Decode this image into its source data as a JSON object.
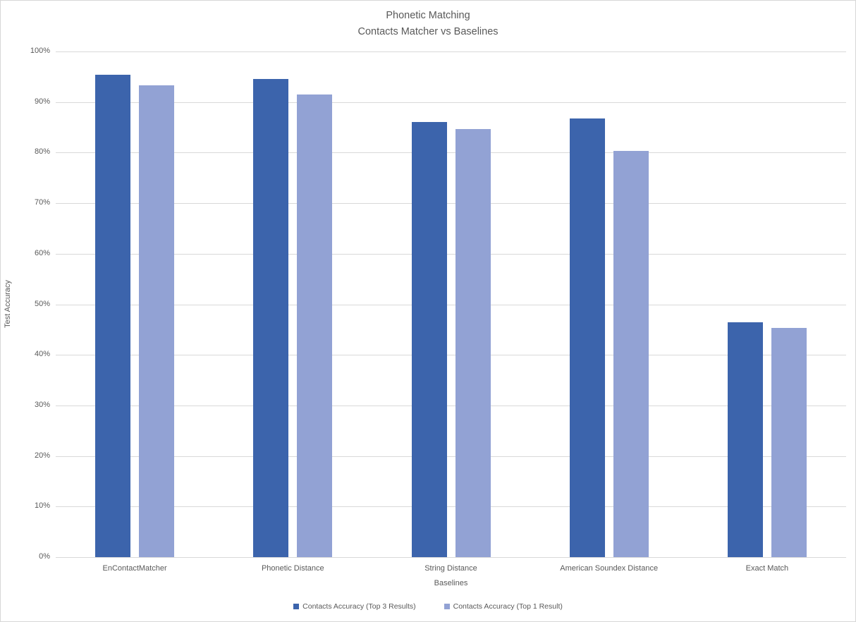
{
  "title": {
    "line1": "Phonetic Matching",
    "line2": "Contacts Matcher vs Baselines"
  },
  "chart_data": {
    "type": "bar",
    "title": "Phonetic Matching\nContacts Matcher vs Baselines",
    "categories": [
      "EnContactMatcher",
      "Phonetic Distance",
      "String Distance",
      "American Soundex Distance",
      "Exact Match"
    ],
    "series": [
      {
        "name": "Contacts Accuracy (Top 3 Results)",
        "color": "#3c64ac",
        "values": [
          95.4,
          94.6,
          86.0,
          86.7,
          46.4
        ]
      },
      {
        "name": "Contacts Accuracy (Top 1 Result)",
        "color": "#92a2d4",
        "values": [
          93.3,
          91.5,
          84.6,
          80.4,
          45.3
        ]
      }
    ],
    "xlabel": "Baselines",
    "ylabel": "Test Accuracy",
    "ylim": [
      0,
      100
    ],
    "ytick_step": 10,
    "ytick_format": "percent",
    "grid": true,
    "legend_position": "bottom"
  },
  "colors": {
    "gridline": "#d9d9d9",
    "axis_line": "#d9d9d9",
    "text": "#595959",
    "chart_border": "#d7d7d7",
    "background": "#ffffff"
  }
}
